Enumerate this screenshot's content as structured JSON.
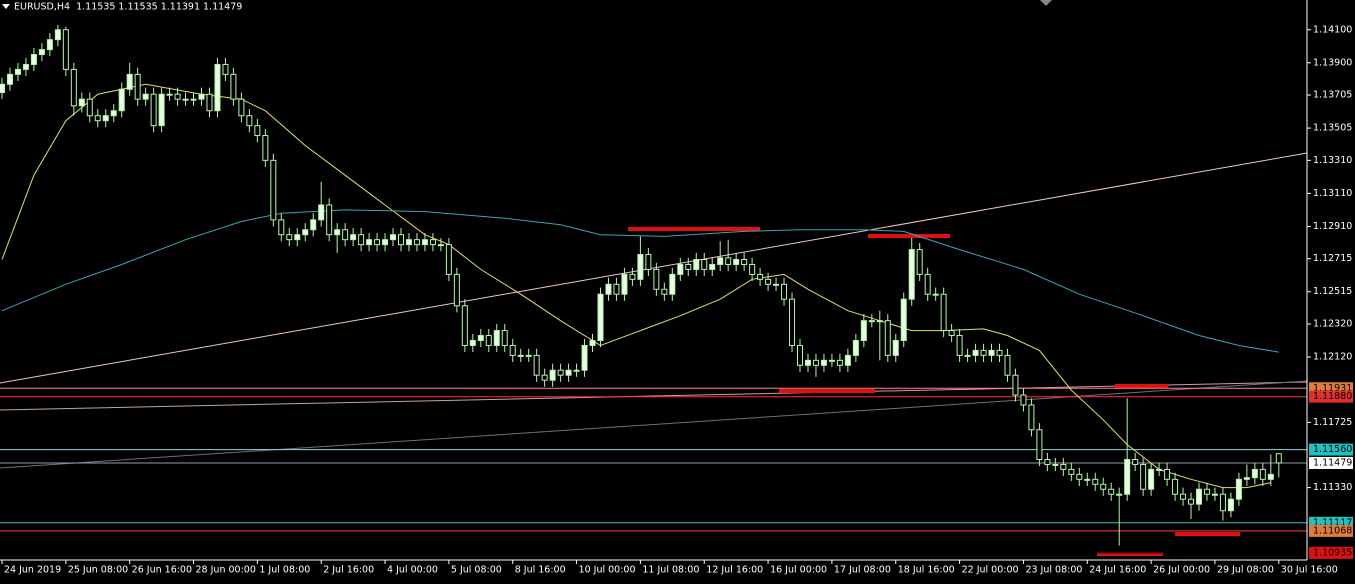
{
  "chart_data": {
    "type": "candlestick",
    "title": "EURUSD,H4  1.11535 1.11535 1.11391 1.11479",
    "ylim": [
      1.10892,
      1.1428
    ],
    "yticks": [
      {
        "value": 1.141,
        "label": "1.14100"
      },
      {
        "value": 1.139,
        "label": "1.13900"
      },
      {
        "value": 1.13705,
        "label": "1.13705"
      },
      {
        "value": 1.13505,
        "label": "1.13505"
      },
      {
        "value": 1.1331,
        "label": "1.13310"
      },
      {
        "value": 1.1311,
        "label": "1.13110"
      },
      {
        "value": 1.1291,
        "label": "1.12910"
      },
      {
        "value": 1.12715,
        "label": "1.12715"
      },
      {
        "value": 1.12515,
        "label": "1.12515"
      },
      {
        "value": 1.1232,
        "label": "1.12320"
      },
      {
        "value": 1.1212,
        "label": "1.12120"
      },
      {
        "value": 1.11725,
        "label": "1.11725"
      },
      {
        "value": 1.1133,
        "label": "1.11330"
      }
    ],
    "levels": [
      {
        "value": 1.11931,
        "label": "1.11931",
        "box": "#e07b39",
        "line": "#ff8080"
      },
      {
        "value": 1.1188,
        "label": "1.11880",
        "box": "#e03030",
        "line": "#ff3030"
      },
      {
        "value": 1.1156,
        "label": "1.11560",
        "box": "#20c0c0",
        "line": "#8fd8e0"
      },
      {
        "value": 1.11479,
        "label": "1.11479",
        "box": "#ffffff",
        "line": "#9a9aa8"
      },
      {
        "value": 1.11117,
        "label": "1.11117",
        "box": "#20c0c0",
        "line": "#30c8c8"
      },
      {
        "value": 1.11068,
        "label": "1.11068",
        "box": "#e07b39",
        "line": "#ff4040"
      },
      {
        "value": 1.10935,
        "label": "1.10935",
        "box": "#e01010",
        "line": "#000000"
      }
    ],
    "xticks": [
      {
        "value": 0,
        "label": "24 Jun 2019"
      },
      {
        "value": 8,
        "label": "25 Jun 08:00"
      },
      {
        "value": 16,
        "label": "26 Jun 16:00"
      },
      {
        "value": 24,
        "label": "28 Jun 00:00"
      },
      {
        "value": 32,
        "label": "1 Jul 08:00"
      },
      {
        "value": 40,
        "label": "2 Jul 16:00"
      },
      {
        "value": 48,
        "label": "4 Jul 00:00"
      },
      {
        "value": 56,
        "label": "5 Jul 08:00"
      },
      {
        "value": 64,
        "label": "8 Jul 16:00"
      },
      {
        "value": 72,
        "label": "10 Jul 00:00"
      },
      {
        "value": 80,
        "label": "11 Jul 08:00"
      },
      {
        "value": 88,
        "label": "12 Jul 16:00"
      },
      {
        "value": 96,
        "label": "16 Jul 00:00"
      },
      {
        "value": 104,
        "label": "17 Jul 08:00"
      },
      {
        "value": 112,
        "label": "18 Jul 16:00"
      },
      {
        "value": 120,
        "label": "22 Jul 00:00"
      },
      {
        "value": 128,
        "label": "23 Jul 08:00"
      },
      {
        "value": 136,
        "label": "24 Jul 16:00"
      },
      {
        "value": 144,
        "label": "26 Jul 00:00"
      },
      {
        "value": 152,
        "label": "29 Jul 08:00"
      },
      {
        "value": 160,
        "label": "30 Jul 16:00"
      }
    ],
    "candle_colors": {
      "edge": "#b6f5ae",
      "up": "#e6ffe0",
      "down": "#000000"
    },
    "ohlc": [
      [
        1.1372,
        1.1381,
        1.1368,
        1.1377
      ],
      [
        1.1377,
        1.1387,
        1.1373,
        1.1383
      ],
      [
        1.1383,
        1.139,
        1.1379,
        1.1386
      ],
      [
        1.1386,
        1.1393,
        1.1382,
        1.1389
      ],
      [
        1.1389,
        1.1399,
        1.1385,
        1.1395
      ],
      [
        1.1395,
        1.1402,
        1.1391,
        1.1398
      ],
      [
        1.1398,
        1.1408,
        1.1394,
        1.1404
      ],
      [
        1.1404,
        1.1413,
        1.14,
        1.141
      ],
      [
        1.141,
        1.1412,
        1.1382,
        1.1386
      ],
      [
        1.1386,
        1.139,
        1.1358,
        1.1364
      ],
      [
        1.1364,
        1.1372,
        1.136,
        1.1368
      ],
      [
        1.1368,
        1.1372,
        1.1354,
        1.1358
      ],
      [
        1.1358,
        1.1362,
        1.1351,
        1.1355
      ],
      [
        1.1355,
        1.1362,
        1.1351,
        1.1358
      ],
      [
        1.1358,
        1.1365,
        1.1354,
        1.1361
      ],
      [
        1.1361,
        1.1378,
        1.1357,
        1.1374
      ],
      [
        1.1374,
        1.139,
        1.137,
        1.1383
      ],
      [
        1.1383,
        1.1387,
        1.1364,
        1.1368
      ],
      [
        1.1368,
        1.1375,
        1.1364,
        1.1371
      ],
      [
        1.1371,
        1.1375,
        1.1348,
        1.1352
      ],
      [
        1.1352,
        1.1375,
        1.1348,
        1.1371
      ],
      [
        1.1371,
        1.1375,
        1.1367,
        1.1371
      ],
      [
        1.1371,
        1.1375,
        1.1364,
        1.1368
      ],
      [
        1.1368,
        1.1372,
        1.1364,
        1.1368
      ],
      [
        1.1368,
        1.1372,
        1.1364,
        1.1368
      ],
      [
        1.1368,
        1.1375,
        1.1364,
        1.1371
      ],
      [
        1.1371,
        1.1375,
        1.1357,
        1.1361
      ],
      [
        1.1361,
        1.1393,
        1.1357,
        1.1389
      ],
      [
        1.1389,
        1.1393,
        1.1379,
        1.1383
      ],
      [
        1.1383,
        1.1387,
        1.1364,
        1.1368
      ],
      [
        1.1368,
        1.1372,
        1.1354,
        1.1358
      ],
      [
        1.1358,
        1.1362,
        1.1348,
        1.1352
      ],
      [
        1.1352,
        1.1356,
        1.1342,
        1.1346
      ],
      [
        1.1346,
        1.135,
        1.1327,
        1.1331
      ],
      [
        1.1331,
        1.1335,
        1.1291,
        1.1295
      ],
      [
        1.1295,
        1.1299,
        1.1282,
        1.1286
      ],
      [
        1.1286,
        1.129,
        1.1279,
        1.1283
      ],
      [
        1.1283,
        1.129,
        1.1279,
        1.1286
      ],
      [
        1.1286,
        1.1293,
        1.1282,
        1.1289
      ],
      [
        1.1289,
        1.1299,
        1.1285,
        1.1295
      ],
      [
        1.1295,
        1.1318,
        1.1291,
        1.1304
      ],
      [
        1.1304,
        1.1308,
        1.1282,
        1.1286
      ],
      [
        1.1286,
        1.1293,
        1.1275,
        1.1289
      ],
      [
        1.1289,
        1.1293,
        1.1279,
        1.1283
      ],
      [
        1.1283,
        1.129,
        1.1279,
        1.1286
      ],
      [
        1.1286,
        1.129,
        1.1276,
        1.128
      ],
      [
        1.128,
        1.1287,
        1.1276,
        1.1283
      ],
      [
        1.1283,
        1.1287,
        1.1276,
        1.128
      ],
      [
        1.128,
        1.1287,
        1.1276,
        1.1283
      ],
      [
        1.1283,
        1.129,
        1.1279,
        1.1286
      ],
      [
        1.1286,
        1.129,
        1.1276,
        1.128
      ],
      [
        1.128,
        1.1287,
        1.1276,
        1.1283
      ],
      [
        1.1283,
        1.1287,
        1.1276,
        1.128
      ],
      [
        1.128,
        1.1287,
        1.1276,
        1.1283
      ],
      [
        1.1283,
        1.1287,
        1.1276,
        1.128
      ],
      [
        1.128,
        1.1284,
        1.1276,
        1.128
      ],
      [
        1.128,
        1.1284,
        1.1258,
        1.1262
      ],
      [
        1.1262,
        1.1266,
        1.1239,
        1.1243
      ],
      [
        1.1243,
        1.1247,
        1.1215,
        1.1219
      ],
      [
        1.1219,
        1.1226,
        1.1215,
        1.1222
      ],
      [
        1.1222,
        1.1229,
        1.1218,
        1.1225
      ],
      [
        1.1225,
        1.1229,
        1.1215,
        1.1219
      ],
      [
        1.1219,
        1.1232,
        1.1215,
        1.1228
      ],
      [
        1.1228,
        1.1232,
        1.1215,
        1.1219
      ],
      [
        1.1219,
        1.1223,
        1.1209,
        1.1213
      ],
      [
        1.1213,
        1.1217,
        1.1209,
        1.1213
      ],
      [
        1.1213,
        1.1217,
        1.1209,
        1.1213
      ],
      [
        1.1213,
        1.1217,
        1.1197,
        1.1201
      ],
      [
        1.1201,
        1.1205,
        1.1194,
        1.1198
      ],
      [
        1.1198,
        1.1208,
        1.1194,
        1.1204
      ],
      [
        1.1204,
        1.1208,
        1.1197,
        1.1201
      ],
      [
        1.1201,
        1.1208,
        1.1197,
        1.1204
      ],
      [
        1.1204,
        1.1208,
        1.12,
        1.1204
      ],
      [
        1.1204,
        1.1223,
        1.12,
        1.1219
      ],
      [
        1.1219,
        1.1226,
        1.1215,
        1.1222
      ],
      [
        1.1222,
        1.1254,
        1.1218,
        1.125
      ],
      [
        1.125,
        1.126,
        1.1246,
        1.1256
      ],
      [
        1.1256,
        1.126,
        1.1246,
        1.125
      ],
      [
        1.125,
        1.1266,
        1.1246,
        1.1262
      ],
      [
        1.1262,
        1.1266,
        1.1255,
        1.1259
      ],
      [
        1.1259,
        1.1285,
        1.1255,
        1.1274
      ],
      [
        1.1274,
        1.1278,
        1.1261,
        1.1265
      ],
      [
        1.1265,
        1.1269,
        1.1249,
        1.1253
      ],
      [
        1.1253,
        1.1257,
        1.1246,
        1.125
      ],
      [
        1.125,
        1.1266,
        1.1246,
        1.1262
      ],
      [
        1.1262,
        1.1272,
        1.1258,
        1.1268
      ],
      [
        1.1268,
        1.1272,
        1.1261,
        1.1265
      ],
      [
        1.1265,
        1.1275,
        1.1261,
        1.1271
      ],
      [
        1.1271,
        1.1275,
        1.1261,
        1.1265
      ],
      [
        1.1265,
        1.1272,
        1.1261,
        1.1268
      ],
      [
        1.1268,
        1.1282,
        1.1264,
        1.1272
      ],
      [
        1.1272,
        1.1283,
        1.1264,
        1.1268
      ],
      [
        1.1268,
        1.1275,
        1.1264,
        1.1271
      ],
      [
        1.1271,
        1.1275,
        1.1264,
        1.1268
      ],
      [
        1.1268,
        1.1272,
        1.1258,
        1.1262
      ],
      [
        1.1262,
        1.1266,
        1.1255,
        1.1259
      ],
      [
        1.1259,
        1.1263,
        1.1252,
        1.1256
      ],
      [
        1.1256,
        1.126,
        1.1252,
        1.1256
      ],
      [
        1.1256,
        1.126,
        1.1243,
        1.1247
      ],
      [
        1.1247,
        1.1251,
        1.1215,
        1.1219
      ],
      [
        1.1219,
        1.1223,
        1.1203,
        1.1207
      ],
      [
        1.1207,
        1.1214,
        1.1203,
        1.121
      ],
      [
        1.121,
        1.1214,
        1.12,
        1.1207
      ],
      [
        1.1207,
        1.1214,
        1.1203,
        1.121
      ],
      [
        1.121,
        1.1214,
        1.1206,
        1.121
      ],
      [
        1.121,
        1.1214,
        1.1203,
        1.1207
      ],
      [
        1.1207,
        1.1217,
        1.1203,
        1.1213
      ],
      [
        1.1213,
        1.1226,
        1.1209,
        1.1222
      ],
      [
        1.1222,
        1.1238,
        1.1218,
        1.1234
      ],
      [
        1.1234,
        1.1238,
        1.123,
        1.1234
      ],
      [
        1.1234,
        1.124,
        1.121,
        1.1234
      ],
      [
        1.1234,
        1.1238,
        1.1209,
        1.1213
      ],
      [
        1.1213,
        1.1226,
        1.1209,
        1.1222
      ],
      [
        1.1222,
        1.1251,
        1.1218,
        1.1247
      ],
      [
        1.1247,
        1.1284,
        1.1243,
        1.1277
      ],
      [
        1.1277,
        1.1281,
        1.1258,
        1.1262
      ],
      [
        1.1262,
        1.1266,
        1.1246,
        1.125
      ],
      [
        1.125,
        1.1254,
        1.1246,
        1.125
      ],
      [
        1.125,
        1.1254,
        1.1224,
        1.1228
      ],
      [
        1.1228,
        1.1232,
        1.1221,
        1.1225
      ],
      [
        1.1225,
        1.1229,
        1.1209,
        1.1213
      ],
      [
        1.1213,
        1.1217,
        1.1209,
        1.1213
      ],
      [
        1.1213,
        1.122,
        1.1209,
        1.1216
      ],
      [
        1.1216,
        1.122,
        1.1209,
        1.1213
      ],
      [
        1.1213,
        1.122,
        1.1209,
        1.1216
      ],
      [
        1.1216,
        1.122,
        1.1209,
        1.1213
      ],
      [
        1.1213,
        1.1217,
        1.1197,
        1.1201
      ],
      [
        1.1201,
        1.1205,
        1.1185,
        1.1189
      ],
      [
        1.1189,
        1.1193,
        1.1179,
        1.1183
      ],
      [
        1.1183,
        1.1187,
        1.1164,
        1.1168
      ],
      [
        1.1168,
        1.1172,
        1.1146,
        1.115
      ],
      [
        1.115,
        1.1154,
        1.1143,
        1.1147
      ],
      [
        1.1147,
        1.1151,
        1.1143,
        1.1147
      ],
      [
        1.1147,
        1.1151,
        1.114,
        1.1144
      ],
      [
        1.1144,
        1.1148,
        1.1137,
        1.1141
      ],
      [
        1.1141,
        1.1145,
        1.1134,
        1.1138
      ],
      [
        1.1138,
        1.1142,
        1.1134,
        1.1138
      ],
      [
        1.1138,
        1.1142,
        1.1131,
        1.1135
      ],
      [
        1.1135,
        1.1139,
        1.1128,
        1.1132
      ],
      [
        1.1132,
        1.1136,
        1.1125,
        1.1129
      ],
      [
        1.1129,
        1.1133,
        1.1098,
        1.1129
      ],
      [
        1.1129,
        1.1187,
        1.1125,
        1.115
      ],
      [
        1.115,
        1.1154,
        1.1143,
        1.1147
      ],
      [
        1.1147,
        1.1151,
        1.1128,
        1.1132
      ],
      [
        1.1132,
        1.1148,
        1.1128,
        1.1144
      ],
      [
        1.1144,
        1.1148,
        1.114,
        1.1144
      ],
      [
        1.1144,
        1.1148,
        1.1134,
        1.1138
      ],
      [
        1.1138,
        1.1142,
        1.1125,
        1.1129
      ],
      [
        1.1129,
        1.1133,
        1.1122,
        1.1126
      ],
      [
        1.1126,
        1.113,
        1.1114,
        1.1123
      ],
      [
        1.1123,
        1.1136,
        1.1119,
        1.1132
      ],
      [
        1.1132,
        1.1136,
        1.1125,
        1.1129
      ],
      [
        1.1129,
        1.1133,
        1.1125,
        1.1129
      ],
      [
        1.1129,
        1.1133,
        1.1113,
        1.1119
      ],
      [
        1.1119,
        1.113,
        1.1115,
        1.1126
      ],
      [
        1.1126,
        1.1142,
        1.1122,
        1.1138
      ],
      [
        1.1138,
        1.1147,
        1.1134,
        1.1139
      ],
      [
        1.1139,
        1.1148,
        1.1135,
        1.1144
      ],
      [
        1.1144,
        1.1148,
        1.1134,
        1.1138
      ],
      [
        1.1138,
        1.1153,
        1.1134,
        1.1141
      ],
      [
        1.11535,
        1.11535,
        1.11391,
        1.11479
      ]
    ],
    "ma": [
      {
        "color": "#e8e060",
        "x": [
          0,
          4,
          8,
          12,
          18,
          25,
          30,
          33,
          38,
          43,
          48,
          53,
          56,
          60,
          65,
          70,
          75,
          80,
          85,
          90,
          94,
          98,
          101,
          106,
          110,
          114,
          118,
          123,
          126,
          130,
          134,
          138,
          141,
          145,
          149,
          153,
          156,
          159
        ],
        "values": [
          1.1271,
          1.1322,
          1.1355,
          1.1371,
          1.1377,
          1.1371,
          1.1368,
          1.1361,
          1.134,
          1.1322,
          1.1304,
          1.1286,
          1.128,
          1.1265,
          1.125,
          1.1234,
          1.1219,
          1.1228,
          1.1237,
          1.1247,
          1.1259,
          1.1262,
          1.1253,
          1.124,
          1.1234,
          1.1228,
          1.1228,
          1.1229,
          1.1225,
          1.1216,
          1.1192,
          1.1174,
          1.1159,
          1.1144,
          1.1138,
          1.1133,
          1.1133,
          1.1136
        ]
      },
      {
        "color": "#3aa6b8",
        "x": [
          0,
          8,
          15,
          23,
          30,
          35,
          43,
          53,
          63,
          70,
          75,
          83,
          93,
          100,
          108,
          113,
          120,
          128,
          135,
          143,
          150,
          155,
          160
        ],
        "values": [
          1.124,
          1.1256,
          1.1268,
          1.1283,
          1.1294,
          1.1299,
          1.1301,
          1.13,
          1.1296,
          1.1292,
          1.1286,
          1.1285,
          1.1288,
          1.1289,
          1.1289,
          1.1288,
          1.1277,
          1.1265,
          1.125,
          1.1237,
          1.1225,
          1.1219,
          1.1215
        ]
      }
    ]
  }
}
